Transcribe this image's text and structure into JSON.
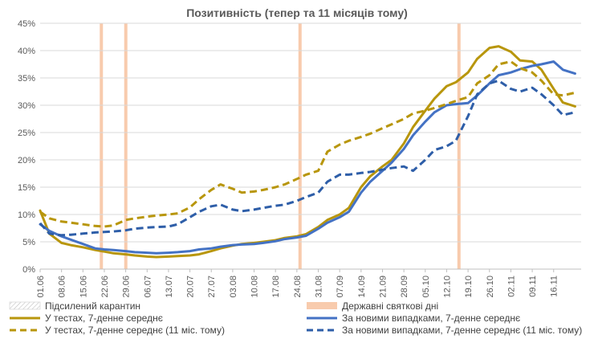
{
  "chart_data": {
    "type": "line",
    "title": "Позитивність (тепер та 11 місяців тому)",
    "xlabel": "",
    "ylabel": "",
    "ylim": [
      0,
      45
    ],
    "y_ticks": [
      "0%",
      "5%",
      "10%",
      "15%",
      "20%",
      "25%",
      "30%",
      "35%",
      "40%",
      "45%"
    ],
    "y_tick_values": [
      0,
      5,
      10,
      15,
      20,
      25,
      30,
      35,
      40,
      45
    ],
    "x_ticks": [
      "01.06",
      "08.06",
      "15.06",
      "22.06",
      "29.06",
      "06.07",
      "13.07",
      "20.07",
      "27.07",
      "03.08",
      "10.08",
      "17.08",
      "24.08",
      "31.08",
      "07.09",
      "14.09",
      "21.09",
      "28.09",
      "05.10",
      "12.10",
      "19.10",
      "26.10",
      "02.11",
      "09.11",
      "16.11"
    ],
    "x_day_range": [
      0,
      177
    ],
    "grid": true,
    "holidays": [
      {
        "start": 19.5,
        "end": 20.5,
        "label": "Державні святкові дні"
      },
      {
        "start": 27.5,
        "end": 28.5,
        "label": "Державні святкові дні"
      },
      {
        "start": 84.5,
        "end": 85.5,
        "label": "Державні святкові дні"
      },
      {
        "start": 136.5,
        "end": 137.5,
        "label": "Державні святкові дні"
      }
    ],
    "series": [
      {
        "name": "У тестах, 7-денне середнє",
        "color": "#B8960C",
        "dash": "solid",
        "x": [
          0,
          3,
          7,
          10,
          14,
          18,
          21,
          24,
          28,
          31,
          35,
          38,
          42,
          45,
          49,
          52,
          56,
          59,
          63,
          66,
          70,
          73,
          77,
          80,
          84,
          87,
          91,
          94,
          98,
          101,
          105,
          108,
          112,
          115,
          119,
          122,
          126,
          129,
          133,
          136,
          140,
          143,
          147,
          150,
          154,
          157,
          161,
          164,
          168,
          171,
          175
        ],
        "values": [
          10.7,
          6.5,
          4.8,
          4.4,
          4.0,
          3.5,
          3.2,
          2.9,
          2.7,
          2.5,
          2.3,
          2.2,
          2.3,
          2.4,
          2.5,
          2.7,
          3.3,
          3.8,
          4.3,
          4.6,
          4.8,
          5.0,
          5.3,
          5.7,
          6.0,
          6.4,
          7.7,
          9.0,
          10.0,
          11.2,
          15.0,
          17.0,
          18.8,
          20.0,
          23.0,
          26.0,
          29.0,
          31.2,
          33.5,
          34.2,
          36.0,
          38.5,
          40.5,
          40.8,
          39.8,
          38.2,
          38.0,
          36.5,
          33.0,
          30.5,
          29.8
        ]
      },
      {
        "name": "За новими випадками, 7-денне середнє",
        "color": "#4472C4",
        "dash": "solid",
        "x": [
          0,
          3,
          7,
          10,
          14,
          18,
          21,
          24,
          28,
          31,
          35,
          38,
          42,
          45,
          49,
          52,
          56,
          59,
          63,
          66,
          70,
          73,
          77,
          80,
          84,
          87,
          91,
          94,
          98,
          101,
          105,
          108,
          112,
          115,
          119,
          122,
          126,
          129,
          133,
          136,
          140,
          143,
          147,
          150,
          154,
          157,
          161,
          164,
          168,
          171,
          175
        ],
        "values": [
          8.2,
          7.0,
          6.0,
          5.4,
          4.6,
          3.8,
          3.6,
          3.5,
          3.3,
          3.1,
          3.0,
          2.9,
          3.0,
          3.1,
          3.3,
          3.6,
          3.8,
          4.1,
          4.4,
          4.5,
          4.6,
          4.8,
          5.1,
          5.5,
          5.8,
          6.1,
          7.4,
          8.5,
          9.5,
          10.5,
          14.0,
          16.0,
          18.0,
          19.5,
          22.0,
          24.5,
          27.0,
          28.7,
          30.0,
          30.2,
          30.4,
          31.8,
          34.0,
          35.5,
          36.0,
          36.6,
          37.2,
          37.5,
          38.0,
          36.5,
          35.8
        ]
      },
      {
        "name": "У тестах, 7-денне середнє (11 міс. тому)",
        "color": "#B8960C",
        "dash": "dashed",
        "x": [
          0,
          3,
          7,
          10,
          14,
          18,
          21,
          24,
          28,
          31,
          35,
          38,
          42,
          45,
          49,
          52,
          56,
          59,
          63,
          66,
          70,
          73,
          77,
          80,
          84,
          87,
          91,
          94,
          98,
          101,
          105,
          108,
          112,
          115,
          119,
          122,
          126,
          129,
          133,
          136,
          140,
          143,
          147,
          150,
          154,
          157,
          161,
          164,
          168,
          171,
          175
        ],
        "values": [
          10.5,
          9.3,
          8.7,
          8.5,
          8.2,
          7.9,
          7.8,
          8.0,
          9.0,
          9.3,
          9.6,
          9.8,
          10.0,
          10.2,
          11.3,
          12.8,
          14.5,
          15.5,
          14.7,
          14.0,
          14.2,
          14.5,
          15.0,
          15.5,
          16.5,
          17.3,
          18.0,
          21.5,
          22.8,
          23.5,
          24.2,
          24.8,
          25.8,
          26.5,
          27.5,
          28.5,
          29.0,
          29.5,
          30.2,
          30.8,
          31.5,
          34.0,
          35.5,
          37.5,
          38.0,
          36.8,
          36.0,
          34.5,
          32.0,
          31.8,
          32.3
        ]
      },
      {
        "name": "За новими випадками, 7-денне середнє (11 міс. тому)",
        "color": "#2E5EA8",
        "dash": "dashed",
        "x": [
          0,
          3,
          7,
          10,
          14,
          18,
          21,
          24,
          28,
          31,
          35,
          38,
          42,
          45,
          49,
          52,
          56,
          59,
          63,
          66,
          70,
          73,
          77,
          80,
          84,
          87,
          91,
          94,
          98,
          101,
          105,
          108,
          112,
          115,
          119,
          122,
          126,
          129,
          133,
          136,
          140,
          143,
          147,
          150,
          154,
          157,
          161,
          164,
          168,
          171,
          175
        ],
        "values": [
          8.4,
          6.5,
          6.2,
          6.3,
          6.5,
          6.7,
          6.8,
          6.9,
          7.1,
          7.4,
          7.6,
          7.7,
          7.8,
          8.2,
          9.5,
          10.5,
          11.5,
          11.8,
          10.9,
          10.6,
          10.9,
          11.2,
          11.6,
          11.8,
          12.5,
          13.2,
          14.0,
          16.0,
          17.3,
          17.3,
          17.6,
          17.8,
          18.2,
          18.5,
          18.8,
          18.0,
          20.0,
          21.8,
          22.5,
          23.5,
          28.0,
          32.0,
          34.0,
          34.5,
          33.0,
          32.5,
          33.2,
          32.0,
          30.0,
          28.2,
          28.7
        ]
      }
    ],
    "legend": [
      {
        "label": "Підсилений карантин",
        "kind": "hatched-box"
      },
      {
        "label": "Державні святкові дні",
        "kind": "fill-box",
        "color": "#F8CBAD"
      },
      {
        "label": "У тестах, 7-денне середнє",
        "kind": "solid-line",
        "color": "#B8960C"
      },
      {
        "label": "За новими випадками, 7-денне середнє",
        "kind": "solid-line",
        "color": "#4472C4"
      },
      {
        "label": "У тестах, 7-денне середнє (11 міс. тому)",
        "kind": "dashed-line",
        "color": "#B8960C"
      },
      {
        "label": "За новими випадками, 7-денне середнє (11 міс. тому)",
        "kind": "dashed-line",
        "color": "#2E5EA8"
      }
    ],
    "legend_position": "bottom",
    "colors": {
      "grid": "#D9D9D9",
      "axis": "#BFBFBF",
      "holiday": "#F8CBAD",
      "text": "#595959"
    }
  }
}
